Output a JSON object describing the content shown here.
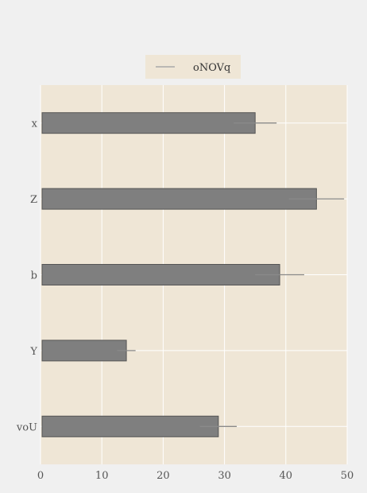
{
  "colors": {
    "page_background": "#f0f0f0",
    "plot_background": "#efe6d6",
    "bar_fill": "#7f7f7f",
    "bar_edge": "#555555",
    "error_bar": "#8a8a8a",
    "grid": "#ffffff",
    "tick_text": "#555555"
  },
  "chart_data": {
    "type": "bar",
    "orientation": "horizontal",
    "categories": [
      "voU",
      "Y",
      "b",
      "Z",
      "x"
    ],
    "series": [
      {
        "name": "oNOVq",
        "values": [
          29,
          14,
          39,
          45,
          35
        ],
        "errors": [
          3,
          1.5,
          4,
          4.5,
          3.5
        ]
      }
    ],
    "xlim": [
      0,
      50
    ],
    "xticks": [
      0,
      10,
      20,
      30,
      40,
      50
    ],
    "grid": true,
    "legend_position": "top-center",
    "title": "",
    "xlabel": "",
    "ylabel": ""
  }
}
